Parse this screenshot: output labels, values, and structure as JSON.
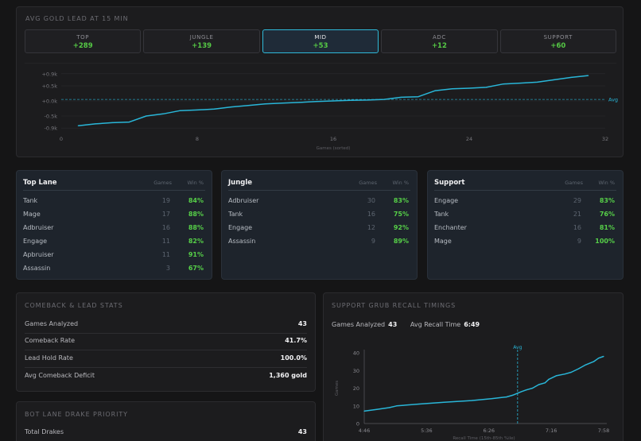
{
  "gold": {
    "title": "AVG GOLD LEAD AT 15 MIN",
    "tabs": [
      {
        "name": "TOP",
        "value": "+289"
      },
      {
        "name": "JUNGLE",
        "value": "+139"
      },
      {
        "name": "MID",
        "value": "+53"
      },
      {
        "name": "ADC",
        "value": "+12"
      },
      {
        "name": "SUPPORT",
        "value": "+60"
      }
    ],
    "active_tab": "MID"
  },
  "chart_data": [
    {
      "type": "line",
      "xlabel": "Games (sorted)",
      "ylabel": "",
      "xlim": [
        0,
        32
      ],
      "ylim": [
        -1.0,
        1.0
      ],
      "x_ticks": [
        "0",
        "8",
        "16",
        "24",
        "32"
      ],
      "y_ticks": [
        "+0.9k",
        "+0.5k",
        "+0.0k",
        "-0.5k",
        "-0.9k"
      ],
      "y_tick_values": [
        0.9,
        0.5,
        0.0,
        -0.5,
        -0.9
      ],
      "reference_line": {
        "label": "Avg",
        "value": 0.05
      },
      "x": [
        1,
        2,
        3,
        4,
        5,
        6,
        7,
        8,
        9,
        10,
        11,
        12,
        13,
        14,
        15,
        16,
        17,
        18,
        19,
        20,
        21,
        22,
        23,
        24,
        25,
        26,
        27,
        28,
        29,
        30,
        31
      ],
      "values": [
        -0.82,
        -0.76,
        -0.72,
        -0.7,
        -0.5,
        -0.43,
        -0.32,
        -0.3,
        -0.27,
        -0.2,
        -0.15,
        -0.1,
        -0.07,
        -0.05,
        -0.02,
        0.0,
        0.02,
        0.03,
        0.05,
        0.12,
        0.14,
        0.34,
        0.4,
        0.42,
        0.45,
        0.56,
        0.59,
        0.62,
        0.7,
        0.78,
        0.84
      ],
      "color": "#29b6d8"
    },
    {
      "type": "line",
      "xlabel": "Recall Time (15th-85th %ile)",
      "ylabel": "Games",
      "xlim": [
        "4:46",
        "7:58"
      ],
      "ylim": [
        0,
        40
      ],
      "x_ticks": [
        "4:46",
        "5:36",
        "6:26",
        "7:16",
        "7:58"
      ],
      "y_ticks": [
        "0",
        "10",
        "20",
        "30",
        "40"
      ],
      "reference_line": {
        "label": "Avg",
        "value": "6:49"
      },
      "x_seconds": [
        286,
        296,
        306,
        312,
        330,
        350,
        372,
        388,
        400,
        405,
        412,
        416,
        421,
        426,
        431,
        434,
        440,
        447,
        452,
        458,
        463,
        470,
        474,
        478
      ],
      "values": [
        7,
        8,
        9,
        10,
        11,
        12,
        13,
        14,
        15,
        16,
        18,
        19,
        20,
        22,
        23,
        25,
        27,
        28,
        29,
        31,
        33,
        35,
        37,
        38
      ],
      "color": "#29b6d8"
    }
  ],
  "lanes": [
    {
      "title": "Top Lane",
      "col_games": "Games",
      "col_win": "Win %",
      "rows": [
        {
          "name": "Tank",
          "games": "19",
          "win": "84%"
        },
        {
          "name": "Mage",
          "games": "17",
          "win": "88%"
        },
        {
          "name": "Adbruiser",
          "games": "16",
          "win": "88%"
        },
        {
          "name": "Engage",
          "games": "11",
          "win": "82%"
        },
        {
          "name": "Apbruiser",
          "games": "11",
          "win": "91%"
        },
        {
          "name": "Assassin",
          "games": "3",
          "win": "67%"
        }
      ]
    },
    {
      "title": "Jungle",
      "col_games": "Games",
      "col_win": "Win %",
      "rows": [
        {
          "name": "Adbruiser",
          "games": "30",
          "win": "83%"
        },
        {
          "name": "Tank",
          "games": "16",
          "win": "75%"
        },
        {
          "name": "Engage",
          "games": "12",
          "win": "92%"
        },
        {
          "name": "Assassin",
          "games": "9",
          "win": "89%"
        }
      ]
    },
    {
      "title": "Support",
      "col_games": "Games",
      "col_win": "Win %",
      "rows": [
        {
          "name": "Engage",
          "games": "29",
          "win": "83%"
        },
        {
          "name": "Tank",
          "games": "21",
          "win": "76%"
        },
        {
          "name": "Enchanter",
          "games": "16",
          "win": "81%"
        },
        {
          "name": "Mage",
          "games": "9",
          "win": "100%"
        }
      ]
    }
  ],
  "comeback": {
    "title": "COMEBACK & LEAD STATS",
    "rows": [
      {
        "label": "Games Analyzed",
        "value": "43"
      },
      {
        "label": "Comeback Rate",
        "value": "41.7%"
      },
      {
        "label": "Lead Hold Rate",
        "value": "100.0%"
      },
      {
        "label": "Avg Comeback Deficit",
        "value": "1,360 gold"
      }
    ]
  },
  "drake": {
    "title": "BOT LANE DRAKE PRIORITY",
    "rows": [
      {
        "label": "Total Drakes",
        "value": "43"
      }
    ]
  },
  "grub": {
    "title": "SUPPORT GRUB RECALL TIMINGS",
    "games_label": "Games Analyzed",
    "games_value": "43",
    "avg_label": "Avg Recall Time",
    "avg_value": "6:49"
  }
}
